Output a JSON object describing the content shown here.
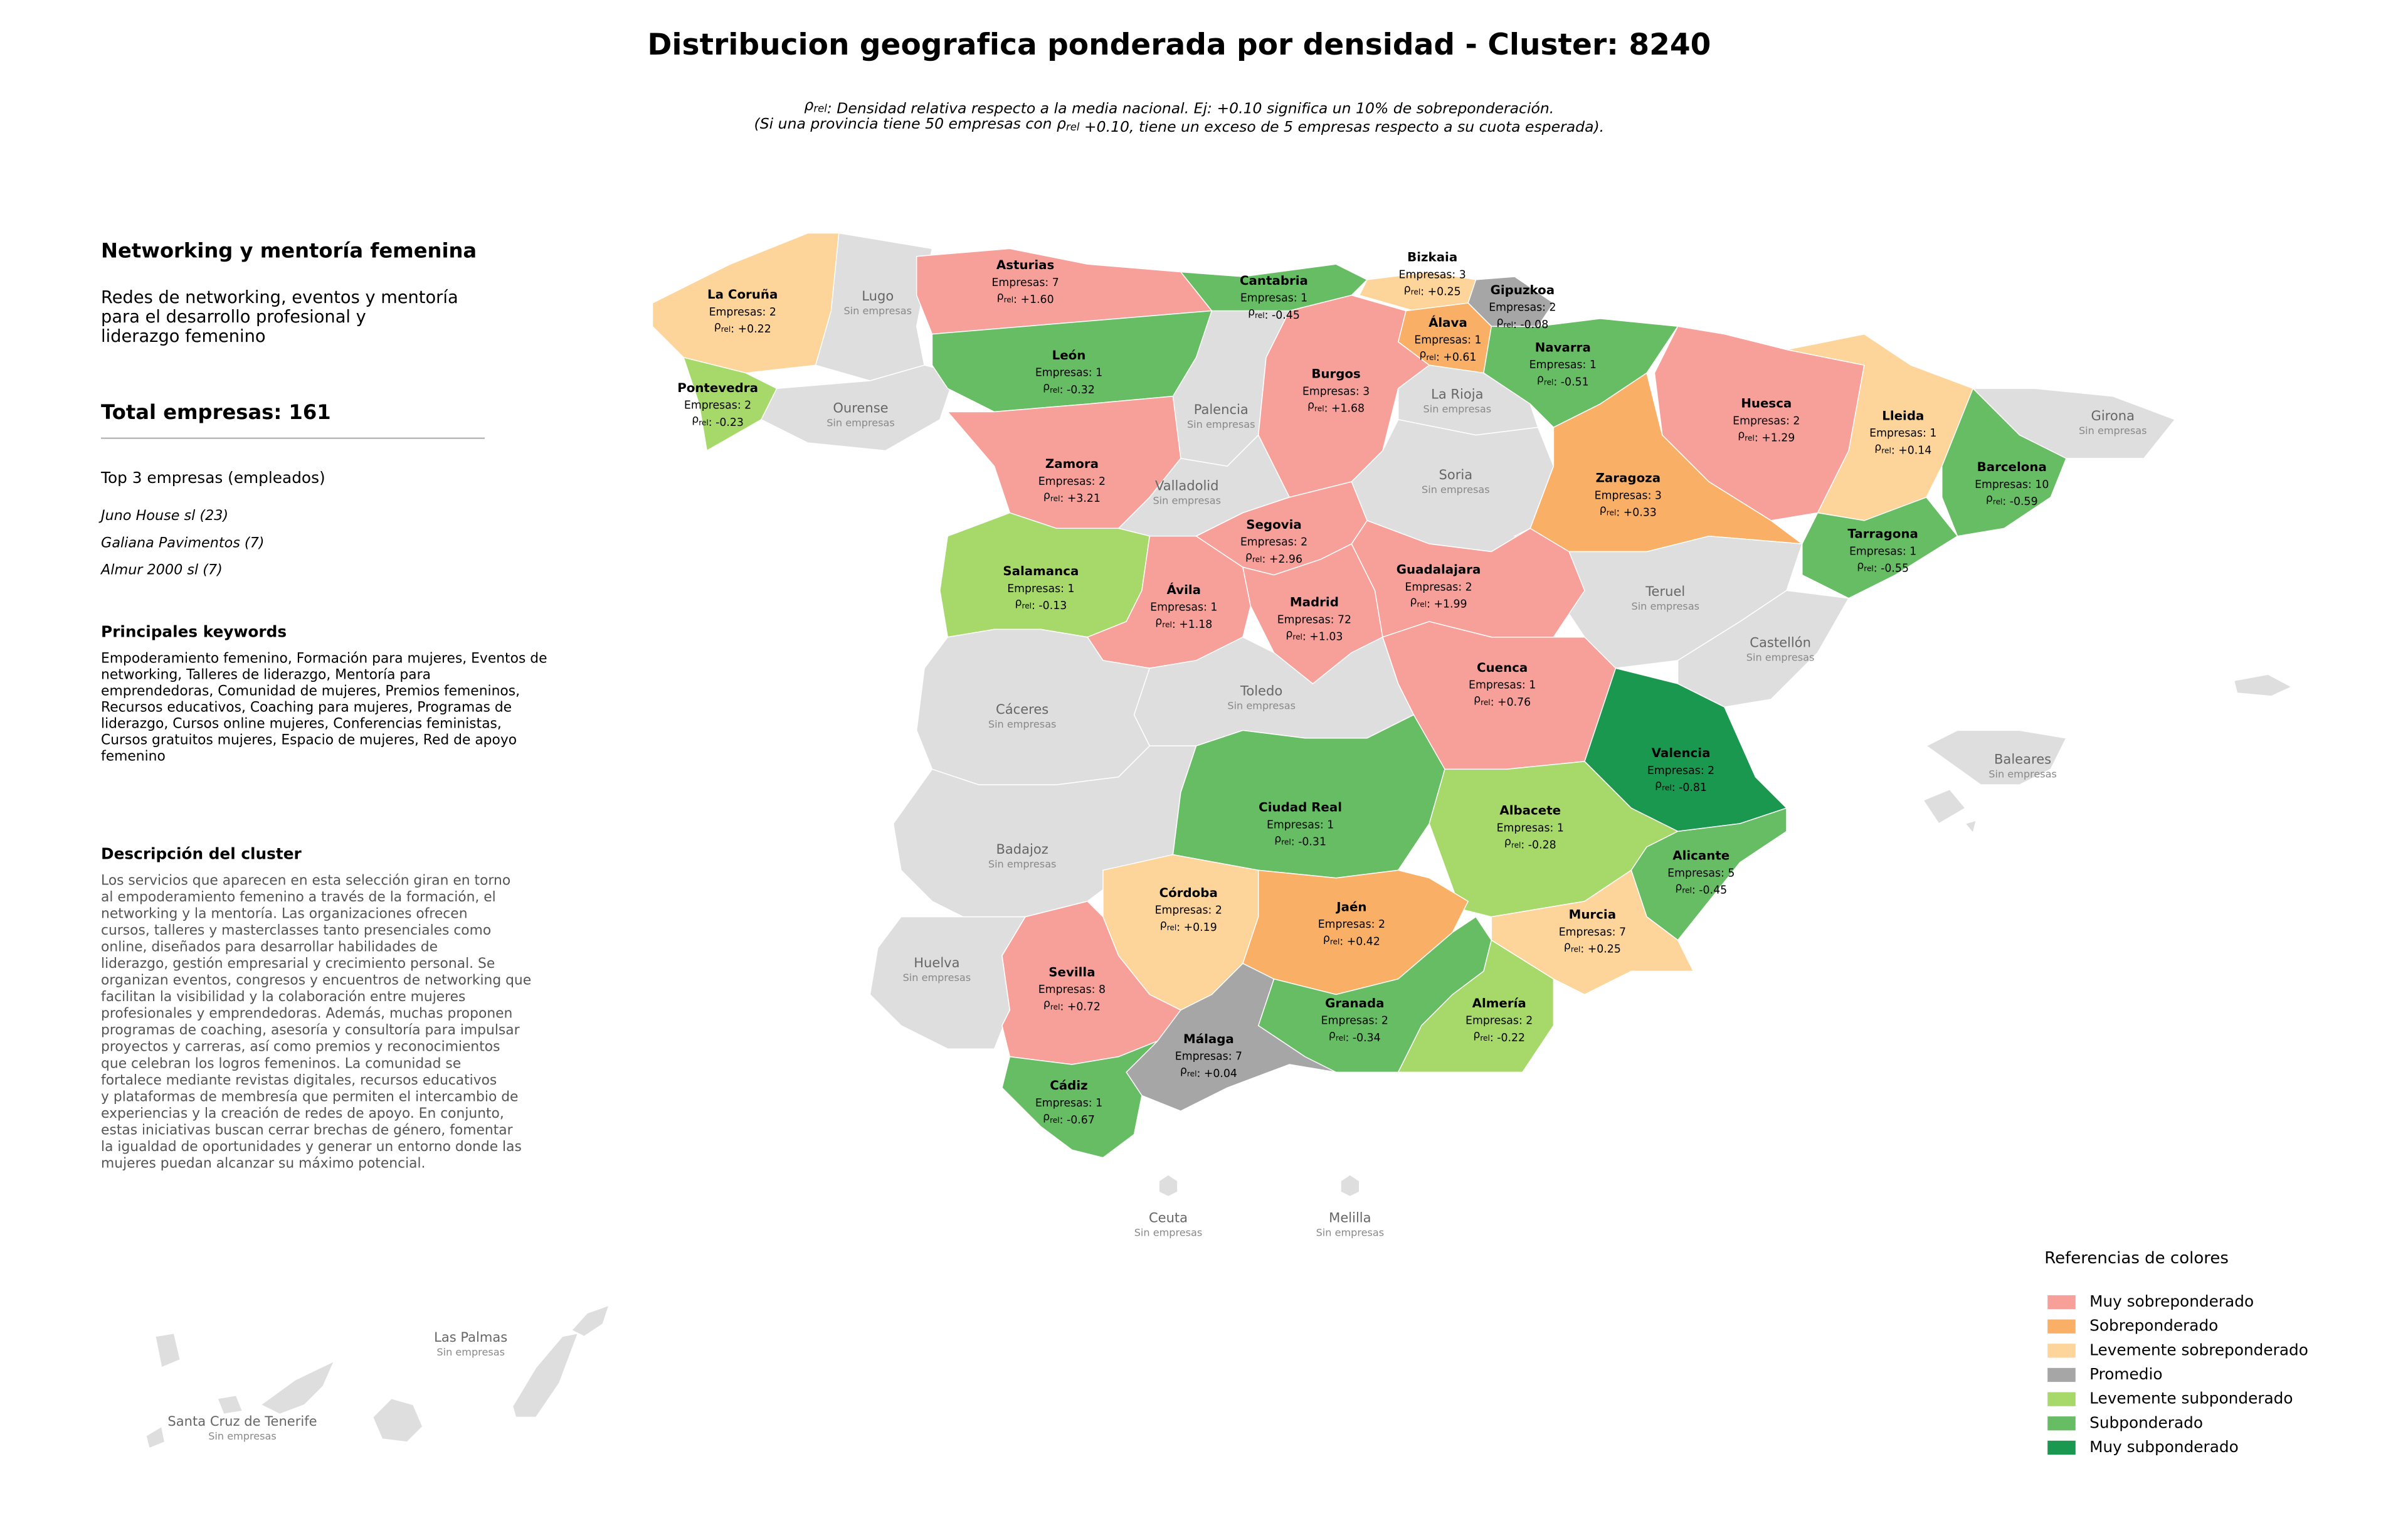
{
  "title": "Distribucion geografica ponderada por densidad - Cluster: 8240",
  "subtitle": [
    [
      {
        "text": "ρ"
      },
      {
        "sub": "rel"
      },
      {
        "text": ": Densidad relativa respecto a la media nacional. Ej: +0.10 significa un 10% de sobreponderación."
      }
    ],
    [
      {
        "text": "(Si una provincia tiene 50 empresas con "
      },
      {
        "text": "ρ"
      },
      {
        "sub": "rel"
      },
      {
        "text": " +0.10, tiene un exceso de 5 empresas respecto a su cuota esperada)."
      }
    ]
  ],
  "panel": {
    "cluster_name": "Networking y mentoría femenina",
    "cluster_summary": [
      "Redes de networking, eventos y mentoría",
      "para el desarrollo profesional y",
      "liderazgo femenino"
    ],
    "total": "Total empresas: 161",
    "top_title": "Top 3 empresas (empleados)",
    "top": [
      "Juno House sl (23)",
      "Galiana Pavimentos (7)",
      "Almur 2000 sl (7)"
    ],
    "keywords_title": "Principales keywords",
    "keywords": [
      "Empoderamiento femenino, Formación para mujeres, Eventos de",
      "networking, Talleres de liderazgo, Mentoría para",
      "emprendedoras, Comunidad de mujeres, Premios femeninos,",
      "Recursos educativos, Coaching para mujeres, Programas de",
      "liderazgo, Cursos online mujeres, Conferencias feministas,",
      "Cursos gratuitos mujeres, Espacio de mujeres, Red de apoyo",
      "femenino"
    ],
    "description_title": "Descripción del cluster",
    "description": [
      "Los servicios que aparecen en esta selección giran en torno",
      "al empoderamiento femenino a través de la formación, el",
      "networking y la mentoría. Las organizaciones ofrecen",
      "cursos, talleres y masterclasses tanto presenciales como",
      "online, diseñados para desarrollar habilidades de",
      "liderazgo, gestión empresarial y crecimiento personal. Se",
      "organizan eventos, congresos y encuentros de networking que",
      "facilitan la visibilidad y la colaboración entre mujeres",
      "profesionales y emprendedoras. Además, muchas proponen",
      "programas de coaching, asesoría y consultoría para impulsar",
      "proyectos y carreras, así como premios y reconocimientos",
      "que celebran los logros femeninos. La comunidad se",
      "fortalece mediante revistas digitales, recursos educativos",
      "y plataformas de membresía que permiten el intercambio de",
      "experiencias y la creación de redes de apoyo. En conjunto,",
      "estas iniciativas buscan cerrar brechas de género, fomentar",
      "la igualdad de oportunidades y generar un entorno donde las",
      "mujeres puedan alcanzar su máximo potencial."
    ]
  },
  "labels": {
    "rho": [
      {
        "text": "ρ"
      },
      {
        "sub": "rel"
      },
      {
        "text": ": "
      }
    ]
  },
  "no_data_color": "#dedede",
  "legend": {
    "title": "Referencias de colores",
    "items": [
      {
        "name": "Muy sobreponderado",
        "color": "#f7a09a"
      },
      {
        "name": "Sobreponderado",
        "color": "#f9b066"
      },
      {
        "name": "Levemente sobreponderado",
        "color": "#fdd49a"
      },
      {
        "name": "Promedio",
        "color": "#a6a6a6"
      },
      {
        "name": "Levemente subponderado",
        "color": "#a6d96a"
      },
      {
        "name": "Subponderado",
        "color": "#66bd63"
      },
      {
        "name": "Muy subponderado",
        "color": "#1a9850"
      }
    ]
  },
  "provinces": [
    {
      "name": "La Coruña",
      "companies": "Empresas: 2",
      "rho": "+0.22",
      "level": 2
    },
    {
      "name": "Lugo",
      "status": "Sin empresas"
    },
    {
      "name": "Pontevedra",
      "companies": "Empresas: 2",
      "rho": "-0.23",
      "level": 4
    },
    {
      "name": "Ourense",
      "status": "Sin empresas"
    },
    {
      "name": "Asturias",
      "companies": "Empresas: 7",
      "rho": "+1.60",
      "level": 0
    },
    {
      "name": "Cantabria",
      "companies": "Empresas: 1",
      "rho": "-0.45",
      "level": 5
    },
    {
      "name": "Bizkaia",
      "companies": "Empresas: 3",
      "rho": "+0.25",
      "level": 2
    },
    {
      "name": "Gipuzkoa",
      "companies": "Empresas: 2",
      "rho": "-0.08",
      "level": 3
    },
    {
      "name": "Álava",
      "companies": "Empresas: 1",
      "rho": "+0.61",
      "level": 1
    },
    {
      "name": "Navarra",
      "companies": "Empresas: 1",
      "rho": "-0.51",
      "level": 5
    },
    {
      "name": "León",
      "companies": "Empresas: 1",
      "rho": "-0.32",
      "level": 5
    },
    {
      "name": "Palencia",
      "status": "Sin empresas"
    },
    {
      "name": "Burgos",
      "companies": "Empresas: 3",
      "rho": "+1.68",
      "level": 0
    },
    {
      "name": "La Rioja",
      "status": "Sin empresas"
    },
    {
      "name": "Zamora",
      "companies": "Empresas: 2",
      "rho": "+3.21",
      "level": 0
    },
    {
      "name": "Valladolid",
      "status": "Sin empresas"
    },
    {
      "name": "Soria",
      "status": "Sin empresas"
    },
    {
      "name": "Huesca",
      "companies": "Empresas: 2",
      "rho": "+1.29",
      "level": 0
    },
    {
      "name": "Lleida",
      "companies": "Empresas: 1",
      "rho": "+0.14",
      "level": 2
    },
    {
      "name": "Girona",
      "status": "Sin empresas"
    },
    {
      "name": "Barcelona",
      "companies": "Empresas: 10",
      "rho": "-0.59",
      "level": 5
    },
    {
      "name": "Zaragoza",
      "companies": "Empresas: 3",
      "rho": "+0.33",
      "level": 1
    },
    {
      "name": "Tarragona",
      "companies": "Empresas: 1",
      "rho": "-0.55",
      "level": 5
    },
    {
      "name": "Teruel",
      "status": "Sin empresas"
    },
    {
      "name": "Castellón",
      "status": "Sin empresas"
    },
    {
      "name": "Salamanca",
      "companies": "Empresas: 1",
      "rho": "-0.13",
      "level": 4
    },
    {
      "name": "Ávila",
      "companies": "Empresas: 1",
      "rho": "+1.18",
      "level": 0
    },
    {
      "name": "Segovia",
      "companies": "Empresas: 2",
      "rho": "+2.96",
      "level": 0
    },
    {
      "name": "Madrid",
      "companies": "Empresas: 72",
      "rho": "+1.03",
      "level": 0
    },
    {
      "name": "Guadalajara",
      "companies": "Empresas: 2",
      "rho": "+1.99",
      "level": 0
    },
    {
      "name": "Cuenca",
      "companies": "Empresas: 1",
      "rho": "+0.76",
      "level": 0
    },
    {
      "name": "Cáceres",
      "status": "Sin empresas"
    },
    {
      "name": "Toledo",
      "status": "Sin empresas"
    },
    {
      "name": "Valencia",
      "companies": "Empresas: 2",
      "rho": "-0.81",
      "level": 6
    },
    {
      "name": "Badajoz",
      "status": "Sin empresas"
    },
    {
      "name": "Ciudad Real",
      "companies": "Empresas: 1",
      "rho": "-0.31",
      "level": 5
    },
    {
      "name": "Albacete",
      "companies": "Empresas: 1",
      "rho": "-0.28",
      "level": 4
    },
    {
      "name": "Alicante",
      "companies": "Empresas: 5",
      "rho": "-0.45",
      "level": 5
    },
    {
      "name": "Córdoba",
      "companies": "Empresas: 2",
      "rho": "+0.19",
      "level": 2
    },
    {
      "name": "Jaén",
      "companies": "Empresas: 2",
      "rho": "+0.42",
      "level": 1
    },
    {
      "name": "Murcia",
      "companies": "Empresas: 7",
      "rho": "+0.25",
      "level": 2
    },
    {
      "name": "Huelva",
      "status": "Sin empresas"
    },
    {
      "name": "Sevilla",
      "companies": "Empresas: 8",
      "rho": "+0.72",
      "level": 0
    },
    {
      "name": "Granada",
      "companies": "Empresas: 2",
      "rho": "-0.34",
      "level": 5
    },
    {
      "name": "Almería",
      "companies": "Empresas: 2",
      "rho": "-0.22",
      "level": 4
    },
    {
      "name": "Málaga",
      "companies": "Empresas: 7",
      "rho": "+0.04",
      "level": 3
    },
    {
      "name": "Cádiz",
      "companies": "Empresas: 1",
      "rho": "-0.67",
      "level": 5
    },
    {
      "name": "Baleares",
      "status": "Sin empresas"
    },
    {
      "name": "Ceuta",
      "status": "Sin empresas"
    },
    {
      "name": "Melilla",
      "status": "Sin empresas"
    },
    {
      "name": "Las Palmas",
      "status": "Sin empresas"
    },
    {
      "name": "Santa Cruz de Tenerife",
      "status": "Sin empresas"
    }
  ]
}
